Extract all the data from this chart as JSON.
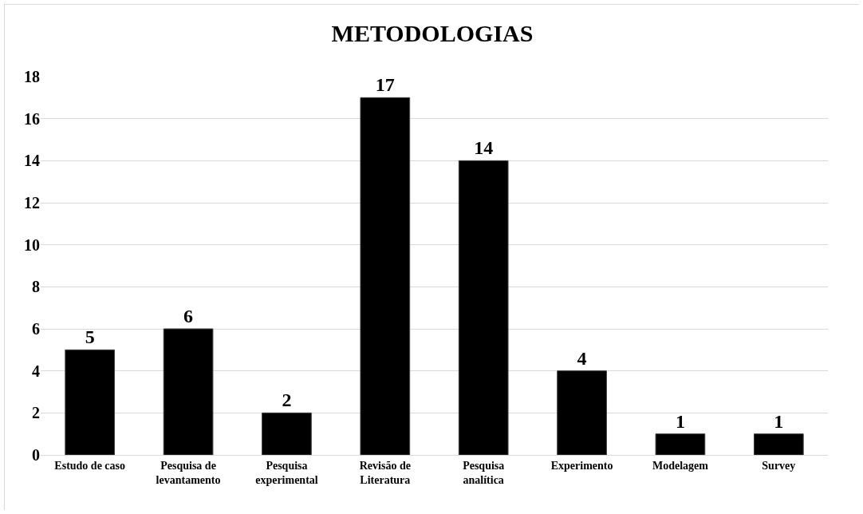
{
  "chart_data": {
    "type": "bar",
    "title": "METODOLOGIAS",
    "categories": [
      "Estudo de caso",
      "Pesquisa de levantamento",
      "Pesquisa experimental",
      "Revisão de Literatura",
      "Pesquisa analítica",
      "Experimento",
      "Modelagem",
      "Survey"
    ],
    "values": [
      5,
      6,
      2,
      17,
      14,
      4,
      1,
      1
    ],
    "color": "#000000",
    "ylim": [
      0,
      18
    ],
    "yticks": [
      0,
      2,
      4,
      6,
      8,
      10,
      12,
      14,
      16,
      18
    ],
    "grid": "y",
    "data_labels": true
  }
}
